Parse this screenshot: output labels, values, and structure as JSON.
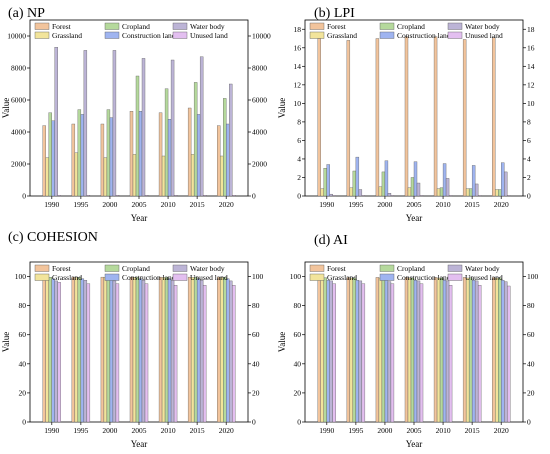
{
  "chart_data": [
    {
      "type": "bar",
      "title": "(a) NP",
      "xlabel": "Year",
      "ylabel": "Value",
      "categories": [
        "1990",
        "1995",
        "2000",
        "2005",
        "2010",
        "2015",
        "2020"
      ],
      "ylim": [
        0,
        11000
      ],
      "yticks": [
        0,
        2000,
        4000,
        6000,
        8000,
        10000
      ],
      "series": [
        {
          "name": "Forest",
          "values": [
            4400,
            4500,
            4500,
            5300,
            5200,
            5500,
            4400
          ]
        },
        {
          "name": "Grassland",
          "values": [
            2400,
            2700,
            2400,
            2600,
            2500,
            2600,
            2500
          ]
        },
        {
          "name": "Cropland",
          "values": [
            5200,
            5400,
            5400,
            7500,
            6700,
            7100,
            6100
          ]
        },
        {
          "name": "Construction land",
          "values": [
            4700,
            5100,
            4900,
            5300,
            4800,
            5100,
            4500
          ]
        },
        {
          "name": "Water body",
          "values": [
            9300,
            9100,
            9100,
            8600,
            8500,
            8700,
            7000
          ]
        },
        {
          "name": "Unused land",
          "values": [
            50,
            50,
            50,
            50,
            50,
            50,
            50
          ]
        }
      ]
    },
    {
      "type": "bar",
      "title": "(b) LPI",
      "xlabel": "Year",
      "ylabel": "Value",
      "categories": [
        "1990",
        "1995",
        "2000",
        "2005",
        "2010",
        "2015",
        "2020"
      ],
      "ylim": [
        0,
        19
      ],
      "yticks": [
        0,
        2,
        4,
        6,
        8,
        10,
        12,
        14,
        16,
        18
      ],
      "series": [
        {
          "name": "Forest",
          "values": [
            17.0,
            16.8,
            17.0,
            17.2,
            17.2,
            16.9,
            17.1
          ]
        },
        {
          "name": "Grassland",
          "values": [
            0.8,
            0.9,
            1.0,
            0.9,
            0.8,
            0.8,
            0.7
          ]
        },
        {
          "name": "Cropland",
          "values": [
            3.0,
            2.7,
            2.6,
            2.0,
            0.9,
            0.8,
            0.7
          ]
        },
        {
          "name": "Construction land",
          "values": [
            3.4,
            4.2,
            3.8,
            3.7,
            3.5,
            3.3,
            3.6
          ]
        },
        {
          "name": "Water body",
          "values": [
            0.2,
            0.7,
            0.3,
            1.4,
            1.9,
            1.3,
            2.6
          ]
        },
        {
          "name": "Unused land",
          "values": [
            0.05,
            0.05,
            0.05,
            0.05,
            0.05,
            0.05,
            0.05
          ]
        }
      ]
    },
    {
      "type": "bar",
      "title": "(c) COHESION",
      "xlabel": "Year",
      "ylabel": "Value",
      "categories": [
        "1990",
        "1995",
        "2000",
        "2005",
        "2010",
        "2015",
        "2020"
      ],
      "ylim": [
        0,
        110
      ],
      "yticks": [
        0,
        20,
        40,
        60,
        80,
        100
      ],
      "series": [
        {
          "name": "Forest",
          "values": [
            99.6,
            99.6,
            99.6,
            99.6,
            99.6,
            99.6,
            99.6
          ]
        },
        {
          "name": "Grassland",
          "values": [
            99.4,
            99.4,
            99.4,
            99.4,
            99.4,
            99.4,
            99.4
          ]
        },
        {
          "name": "Cropland",
          "values": [
            99.5,
            99.5,
            99.5,
            99.5,
            99.5,
            99.5,
            99.5
          ]
        },
        {
          "name": "Construction land",
          "values": [
            98.5,
            98.5,
            98.5,
            98.5,
            98.5,
            98.5,
            98.5
          ]
        },
        {
          "name": "Water body",
          "values": [
            97.0,
            97.5,
            97.0,
            97.5,
            97.5,
            97.5,
            97.0
          ]
        },
        {
          "name": "Unused land",
          "values": [
            96.0,
            95.0,
            95.0,
            95.0,
            94.0,
            94.0,
            94.0
          ]
        }
      ]
    },
    {
      "type": "bar",
      "title": "(d) AI",
      "xlabel": "Year",
      "ylabel": "Value",
      "categories": [
        "1990",
        "1995",
        "2000",
        "2005",
        "2010",
        "2015",
        "2020"
      ],
      "ylim": [
        0,
        110
      ],
      "yticks": [
        0,
        20,
        40,
        60,
        80,
        100
      ],
      "series": [
        {
          "name": "Forest",
          "values": [
            99.4,
            99.4,
            99.4,
            99.4,
            99.4,
            99.4,
            99.4
          ]
        },
        {
          "name": "Grassland",
          "values": [
            99.0,
            99.0,
            99.0,
            99.0,
            99.0,
            99.0,
            99.0
          ]
        },
        {
          "name": "Cropland",
          "values": [
            99.2,
            99.2,
            99.2,
            99.2,
            99.2,
            99.2,
            99.2
          ]
        },
        {
          "name": "Construction land",
          "values": [
            97.5,
            97.5,
            97.5,
            97.5,
            97.5,
            97.5,
            97.5
          ]
        },
        {
          "name": "Water body",
          "values": [
            97.0,
            97.0,
            96.5,
            97.0,
            97.0,
            97.0,
            96.5
          ]
        },
        {
          "name": "Unused land",
          "values": [
            95.0,
            95.0,
            95.0,
            95.0,
            94.0,
            94.0,
            93.5
          ]
        }
      ]
    }
  ],
  "legend": {
    "order": [
      "Forest",
      "Cropland",
      "Water body",
      "Grassland",
      "Construction land",
      "Unused land"
    ]
  },
  "colors": {
    "Forest": "#f2c49c",
    "Grassland": "#f2e49b",
    "Cropland": "#b5d99c",
    "Construction land": "#9fb4f0",
    "Water body": "#bcb4d6",
    "Unused land": "#e3bff0"
  }
}
